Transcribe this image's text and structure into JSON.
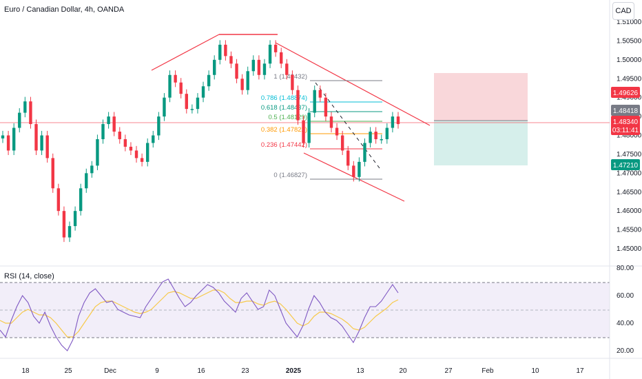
{
  "header": {
    "title": "Euro / Canadian Dollar, 4h, OANDA",
    "currency": "CAD"
  },
  "rsi": {
    "title": "RSI (14, close)",
    "levels": [
      70,
      50,
      30
    ]
  },
  "colors": {
    "up": "#089981",
    "down": "#f23645",
    "rsi_line": "#7e57c2",
    "rsi_ma": "#f7c948",
    "channel": "#f23645",
    "stop_zone": "#f8d0d3",
    "target_zone": "#cfece7",
    "current_price": "#f23645"
  },
  "chart_data": [
    {
      "type": "line",
      "title": "Euro / Canadian Dollar, 4h, OANDA",
      "y_ticks": [
        "1.51000",
        "1.50500",
        "1.50000",
        "1.49500",
        "1.49000",
        "1.48500",
        "1.48000",
        "1.47500",
        "1.47000",
        "1.46500",
        "1.46000",
        "1.45500",
        "1.45000"
      ],
      "x_ticks": [
        "18",
        "25",
        "Dec",
        "9",
        "16",
        "23",
        "2025",
        "13",
        "20",
        "27",
        "Feb",
        "10",
        "17"
      ],
      "ylim": [
        1.4495,
        1.5124
      ],
      "series": [
        {
          "values": [
            1.48,
            1.476,
            1.482,
            1.486,
            1.489,
            1.483,
            1.476,
            1.48,
            1.474,
            1.466,
            1.46,
            1.453,
            1.456,
            1.46,
            1.466,
            1.47,
            1.472,
            1.479,
            1.483,
            1.485,
            1.481,
            1.479,
            1.477,
            1.476,
            1.474,
            1.473,
            1.478,
            1.48,
            1.485,
            1.49,
            1.496,
            1.494,
            1.491,
            1.487,
            1.487,
            1.49,
            1.493,
            1.496,
            1.5,
            1.504,
            1.501,
            1.499,
            1.495,
            1.492,
            1.497,
            1.5,
            1.496,
            1.499,
            1.504,
            1.502,
            1.499,
            1.496,
            1.492,
            1.484,
            1.478,
            1.486,
            1.492,
            1.49,
            1.485,
            1.482,
            1.48,
            1.476,
            1.472,
            1.469,
            1.473,
            1.478,
            1.481,
            1.479,
            1.479,
            1.482,
            1.485,
            1.483
          ]
        }
      ],
      "current_price": "1.48340",
      "countdown": "03:11:41",
      "price_tags": [
        {
          "value": "1.49626",
          "color": "#f23645"
        },
        {
          "value": "1.48418",
          "color": "#787b86"
        },
        {
          "value": "1.47210",
          "color": "#089981"
        }
      ],
      "fib_levels": [
        {
          "label": "1 (1.49432)",
          "color": "#787b86"
        },
        {
          "label": "0.786 (1.48874)",
          "color": "#00bcd4"
        },
        {
          "label": "0.618 (1.48437)",
          "color": "#089981"
        },
        {
          "label": "0.5 (1.48129)",
          "color": "#4caf50"
        },
        {
          "label": "0.382 (1.47822)",
          "color": "#ff9800"
        },
        {
          "label": "0.236 (1.47442)",
          "color": "#f23645"
        },
        {
          "label": "0 (1.46827)",
          "color": "#787b86"
        }
      ]
    },
    {
      "type": "line",
      "title": "RSI (14, close)",
      "y_ticks": [
        "80.00",
        "60.00",
        "40.00",
        "20.00"
      ],
      "ylim": [
        15,
        84
      ],
      "series": [
        {
          "values": [
            35,
            30,
            42,
            52,
            60,
            55,
            45,
            40,
            48,
            38,
            30,
            24,
            20,
            28,
            45,
            55,
            62,
            65,
            60,
            55,
            56,
            50,
            48,
            46,
            45,
            44,
            52,
            58,
            64,
            70,
            72,
            65,
            58,
            52,
            55,
            60,
            64,
            68,
            66,
            62,
            56,
            52,
            48,
            58,
            62,
            56,
            50,
            52,
            64,
            60,
            50,
            40,
            35,
            30,
            38,
            50,
            60,
            55,
            48,
            44,
            42,
            38,
            32,
            26,
            34,
            44,
            52,
            52,
            56,
            62,
            68,
            62
          ]
        },
        {
          "values": [
            42,
            40,
            40,
            44,
            48,
            50,
            48,
            46,
            46,
            44,
            40,
            35,
            30,
            30,
            34,
            40,
            46,
            52,
            55,
            56,
            56,
            54,
            52,
            50,
            48,
            47,
            48,
            50,
            54,
            58,
            62,
            63,
            62,
            60,
            58,
            58,
            60,
            62,
            64,
            64,
            62,
            58,
            55,
            55,
            56,
            56,
            54,
            53,
            55,
            56,
            54,
            50,
            45,
            40,
            38,
            40,
            45,
            48,
            48,
            47,
            45,
            43,
            40,
            36,
            35,
            37,
            41,
            45,
            48,
            51,
            55,
            57
          ]
        }
      ]
    }
  ]
}
